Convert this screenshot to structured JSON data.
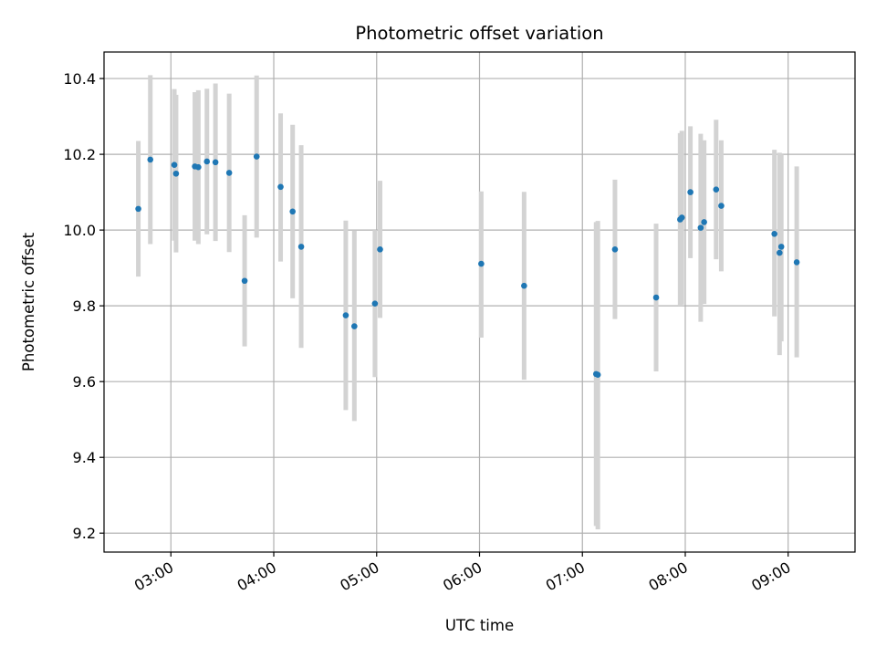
{
  "chart_data": {
    "type": "scatter",
    "title": "Photometric offset variation",
    "xlabel": "UTC time",
    "ylabel": "Photometric offset",
    "x_unit": "UTC time (HH:MM)",
    "xlim": [
      "02:21",
      "09:39"
    ],
    "ylim": [
      9.15,
      10.47
    ],
    "x_ticks": [
      "03:00",
      "04:00",
      "05:00",
      "06:00",
      "07:00",
      "08:00",
      "09:00"
    ],
    "y_ticks": [
      9.2,
      9.4,
      9.6,
      9.8,
      10.0,
      10.2,
      10.4
    ],
    "grid": true,
    "colors": {
      "marker": "#1f77b4",
      "errorbar": "#d3d3d3",
      "grid": "#b0b0b0",
      "axes": "#000000"
    },
    "series": [
      {
        "points": [
          {
            "x": "02:41",
            "y": 10.056,
            "ylow": 9.877,
            "yhigh": 10.235
          },
          {
            "x": "02:48",
            "y": 10.186,
            "ylow": 9.963,
            "yhigh": 10.409
          },
          {
            "x": "03:02",
            "y": 10.172,
            "ylow": 9.972,
            "yhigh": 10.372
          },
          {
            "x": "03:03",
            "y": 10.149,
            "ylow": 9.941,
            "yhigh": 10.357
          },
          {
            "x": "03:14",
            "y": 10.168,
            "ylow": 9.972,
            "yhigh": 10.364
          },
          {
            "x": "03:16",
            "y": 10.166,
            "ylow": 9.963,
            "yhigh": 10.369
          },
          {
            "x": "03:21",
            "y": 10.181,
            "ylow": 9.989,
            "yhigh": 10.373
          },
          {
            "x": "03:26",
            "y": 10.179,
            "ylow": 9.971,
            "yhigh": 10.387
          },
          {
            "x": "03:34",
            "y": 10.151,
            "ylow": 9.942,
            "yhigh": 10.36
          },
          {
            "x": "03:43",
            "y": 9.866,
            "ylow": 9.693,
            "yhigh": 10.039
          },
          {
            "x": "03:50",
            "y": 10.194,
            "ylow": 9.98,
            "yhigh": 10.408
          },
          {
            "x": "04:04",
            "y": 10.114,
            "ylow": 9.917,
            "yhigh": 10.308
          },
          {
            "x": "04:11",
            "y": 10.049,
            "ylow": 9.82,
            "yhigh": 10.278
          },
          {
            "x": "04:16",
            "y": 9.956,
            "ylow": 9.689,
            "yhigh": 10.224
          },
          {
            "x": "04:42",
            "y": 9.775,
            "ylow": 9.525,
            "yhigh": 10.025
          },
          {
            "x": "04:47",
            "y": 9.746,
            "ylow": 9.496,
            "yhigh": 9.998
          },
          {
            "x": "04:59",
            "y": 9.806,
            "ylow": 9.612,
            "yhigh": 10.0
          },
          {
            "x": "05:02",
            "y": 9.949,
            "ylow": 9.768,
            "yhigh": 10.13
          },
          {
            "x": "06:01",
            "y": 9.911,
            "ylow": 9.716,
            "yhigh": 10.102
          },
          {
            "x": "06:26",
            "y": 9.853,
            "ylow": 9.605,
            "yhigh": 10.101
          },
          {
            "x": "07:08",
            "y": 9.62,
            "ylow": 9.219,
            "yhigh": 10.021
          },
          {
            "x": "07:09",
            "y": 9.618,
            "ylow": 9.21,
            "yhigh": 10.024
          },
          {
            "x": "07:19",
            "y": 9.949,
            "ylow": 9.765,
            "yhigh": 10.133
          },
          {
            "x": "07:43",
            "y": 9.822,
            "ylow": 9.627,
            "yhigh": 10.017
          },
          {
            "x": "07:57",
            "y": 10.028,
            "ylow": 9.8,
            "yhigh": 10.256
          },
          {
            "x": "07:58",
            "y": 10.033,
            "ylow": 9.803,
            "yhigh": 10.262
          },
          {
            "x": "08:03",
            "y": 10.1,
            "ylow": 9.926,
            "yhigh": 10.274
          },
          {
            "x": "08:09",
            "y": 10.006,
            "ylow": 9.758,
            "yhigh": 10.254
          },
          {
            "x": "08:11",
            "y": 10.021,
            "ylow": 9.805,
            "yhigh": 10.237
          },
          {
            "x": "08:18",
            "y": 10.107,
            "ylow": 9.923,
            "yhigh": 10.291
          },
          {
            "x": "08:21",
            "y": 10.064,
            "ylow": 9.891,
            "yhigh": 10.237
          },
          {
            "x": "08:52",
            "y": 9.99,
            "ylow": 9.772,
            "yhigh": 10.212
          },
          {
            "x": "08:55",
            "y": 9.94,
            "ylow": 9.67,
            "yhigh": 10.204
          },
          {
            "x": "08:56",
            "y": 9.956,
            "ylow": 9.706,
            "yhigh": 10.2
          },
          {
            "x": "09:05",
            "y": 9.915,
            "ylow": 9.664,
            "yhigh": 10.168
          }
        ]
      }
    ]
  }
}
